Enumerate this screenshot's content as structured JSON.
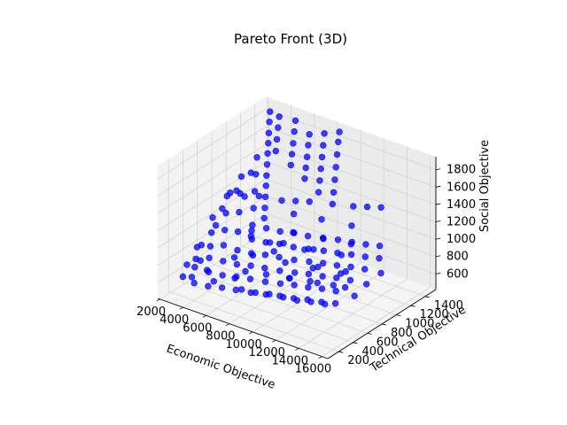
{
  "chart_data": {
    "type": "scatter",
    "projection": "3d",
    "title": "Pareto Front (3D)",
    "xlabel": "Economic Objective",
    "ylabel": "Technical Objective",
    "zlabel": "Social Objective",
    "xlim": [
      1800,
      16500
    ],
    "ylim": [
      50,
      1550
    ],
    "zlim": [
      420,
      1950
    ],
    "xticks": [
      2000,
      4000,
      6000,
      8000,
      10000,
      12000,
      14000,
      16000
    ],
    "yticks": [
      200,
      400,
      600,
      800,
      1000,
      1200,
      1400
    ],
    "zticks": [
      600,
      800,
      1000,
      1200,
      1400,
      1600,
      1800
    ],
    "grid": true,
    "marker_color": "#0000ff",
    "series": [
      {
        "points": [
          [
            2100,
            1480,
            600
          ],
          [
            2150,
            1480,
            720
          ],
          [
            2200,
            1480,
            850
          ],
          [
            2250,
            1480,
            980
          ],
          [
            2300,
            1480,
            1100
          ],
          [
            2350,
            1480,
            1230
          ],
          [
            2400,
            1480,
            1360
          ],
          [
            2450,
            1480,
            1480
          ],
          [
            2500,
            1480,
            1600
          ],
          [
            2550,
            1480,
            1730
          ],
          [
            2600,
            1480,
            1850
          ],
          [
            3100,
            1480,
            1420
          ],
          [
            3200,
            1480,
            1560
          ],
          [
            3300,
            1480,
            1700
          ],
          [
            3400,
            1480,
            1830
          ],
          [
            4400,
            1480,
            1320
          ],
          [
            4500,
            1480,
            1450
          ],
          [
            4600,
            1480,
            1580
          ],
          [
            4700,
            1480,
            1720
          ],
          [
            4800,
            1480,
            1850
          ],
          [
            5600,
            1480,
            1220
          ],
          [
            5700,
            1480,
            1350
          ],
          [
            5800,
            1480,
            1480
          ],
          [
            5900,
            1480,
            1620
          ],
          [
            6000,
            1480,
            1750
          ],
          [
            6800,
            1480,
            1120
          ],
          [
            6900,
            1480,
            1260
          ],
          [
            7000,
            1480,
            1400
          ],
          [
            7100,
            1480,
            1540
          ],
          [
            7200,
            1480,
            1680
          ],
          [
            7300,
            1480,
            1820
          ],
          [
            8000,
            1480,
            1040
          ],
          [
            8100,
            1480,
            1180
          ],
          [
            8200,
            1480,
            1330
          ],
          [
            8300,
            1480,
            1480
          ],
          [
            8400,
            1480,
            1630
          ],
          [
            8500,
            1480,
            1780
          ],
          [
            8600,
            1480,
            1900
          ],
          [
            2200,
            1300,
            620
          ],
          [
            2300,
            1300,
            820
          ],
          [
            2400,
            1300,
            1020
          ],
          [
            2500,
            1300,
            1220
          ],
          [
            2600,
            1300,
            1420
          ],
          [
            2200,
            1100,
            650
          ],
          [
            2300,
            1100,
            880
          ],
          [
            2400,
            1100,
            1100
          ],
          [
            2500,
            1100,
            1300
          ],
          [
            2200,
            900,
            600
          ],
          [
            2300,
            900,
            780
          ],
          [
            2400,
            900,
            980
          ],
          [
            2500,
            900,
            1180
          ],
          [
            2200,
            700,
            560
          ],
          [
            2300,
            700,
            700
          ],
          [
            2400,
            700,
            860
          ],
          [
            2500,
            700,
            1040
          ],
          [
            2200,
            500,
            560
          ],
          [
            2300,
            500,
            660
          ],
          [
            2400,
            500,
            800
          ],
          [
            2300,
            320,
            550
          ],
          [
            3400,
            1300,
            640
          ],
          [
            4600,
            1300,
            660
          ],
          [
            5800,
            1300,
            700
          ],
          [
            7000,
            1300,
            720
          ],
          [
            8300,
            1300,
            760
          ],
          [
            9600,
            1300,
            800
          ],
          [
            10800,
            1300,
            830
          ],
          [
            12000,
            1300,
            860
          ],
          [
            13200,
            1300,
            900
          ],
          [
            3400,
            1100,
            620
          ],
          [
            4600,
            1100,
            640
          ],
          [
            5800,
            1100,
            680
          ],
          [
            7000,
            1100,
            700
          ],
          [
            8300,
            1100,
            740
          ],
          [
            9600,
            1100,
            780
          ],
          [
            10800,
            1100,
            810
          ],
          [
            12000,
            1100,
            850
          ],
          [
            13200,
            1100,
            880
          ],
          [
            14400,
            1100,
            920
          ],
          [
            3400,
            900,
            600
          ],
          [
            4600,
            900,
            620
          ],
          [
            5800,
            900,
            660
          ],
          [
            7000,
            900,
            690
          ],
          [
            8300,
            900,
            720
          ],
          [
            9600,
            900,
            760
          ],
          [
            10800,
            900,
            800
          ],
          [
            12000,
            900,
            830
          ],
          [
            13200,
            900,
            870
          ],
          [
            14400,
            900,
            900
          ],
          [
            3400,
            700,
            580
          ],
          [
            4600,
            700,
            600
          ],
          [
            5800,
            700,
            640
          ],
          [
            7000,
            700,
            670
          ],
          [
            8300,
            700,
            700
          ],
          [
            9600,
            700,
            740
          ],
          [
            10800,
            700,
            780
          ],
          [
            12000,
            700,
            810
          ],
          [
            13200,
            700,
            850
          ],
          [
            14400,
            700,
            880
          ],
          [
            3400,
            500,
            560
          ],
          [
            4600,
            500,
            580
          ],
          [
            5800,
            500,
            620
          ],
          [
            7000,
            500,
            650
          ],
          [
            8300,
            500,
            680
          ],
          [
            9600,
            500,
            720
          ],
          [
            10800,
            500,
            760
          ],
          [
            12000,
            500,
            790
          ],
          [
            13200,
            500,
            830
          ],
          [
            14400,
            500,
            860
          ],
          [
            3400,
            300,
            540
          ],
          [
            4600,
            300,
            560
          ],
          [
            5800,
            300,
            600
          ],
          [
            7000,
            300,
            630
          ],
          [
            8300,
            300,
            660
          ],
          [
            9600,
            300,
            700
          ],
          [
            10800,
            300,
            740
          ],
          [
            12000,
            300,
            770
          ],
          [
            13200,
            300,
            810
          ],
          [
            14400,
            300,
            840
          ],
          [
            15600,
            300,
            880
          ],
          [
            6400,
            1200,
            1000
          ],
          [
            7600,
            1000,
            950
          ],
          [
            8800,
            1200,
            1050
          ],
          [
            10200,
            1000,
            1000
          ],
          [
            11400,
            1200,
            1100
          ],
          [
            12600,
            1000,
            1050
          ],
          [
            5200,
            800,
            900
          ],
          [
            6600,
            600,
            850
          ],
          [
            8000,
            800,
            950
          ],
          [
            9400,
            600,
            900
          ],
          [
            10600,
            800,
            1000
          ],
          [
            11800,
            600,
            950
          ],
          [
            13000,
            800,
            1050
          ],
          [
            14200,
            600,
            1000
          ],
          [
            7200,
            400,
            800
          ],
          [
            9000,
            400,
            850
          ],
          [
            11000,
            400,
            900
          ],
          [
            12800,
            400,
            950
          ],
          [
            14800,
            400,
            1000
          ],
          [
            4000,
            1000,
            800
          ],
          [
            5000,
            600,
            750
          ],
          [
            6200,
            900,
            820
          ],
          [
            7800,
            700,
            900
          ],
          [
            9200,
            900,
            880
          ],
          [
            10400,
            500,
            820
          ],
          [
            11600,
            700,
            900
          ],
          [
            12800,
            500,
            880
          ],
          [
            14000,
            700,
            960
          ],
          [
            15200,
            500,
            940
          ],
          [
            3000,
            450,
            700
          ],
          [
            3500,
            250,
            640
          ],
          [
            4200,
            350,
            700
          ],
          [
            5400,
            250,
            680
          ],
          [
            6600,
            350,
            720
          ],
          [
            7800,
            250,
            700
          ],
          [
            9000,
            250,
            720
          ],
          [
            10200,
            250,
            760
          ],
          [
            11400,
            250,
            780
          ],
          [
            12600,
            250,
            800
          ],
          [
            13800,
            250,
            840
          ],
          [
            15000,
            250,
            870
          ],
          [
            3800,
            1450,
            900
          ],
          [
            5000,
            1450,
            950
          ],
          [
            6200,
            1450,
            1000
          ],
          [
            9800,
            1480,
            1100
          ],
          [
            11000,
            1480,
            1150
          ],
          [
            12200,
            1480,
            1200
          ],
          [
            2150,
            1400,
            900
          ],
          [
            2150,
            1200,
            1000
          ],
          [
            2150,
            1000,
            1150
          ],
          [
            2150,
            800,
            880
          ],
          [
            2150,
            600,
            760
          ],
          [
            2150,
            400,
            640
          ],
          [
            2700,
            1200,
            1300
          ],
          [
            2700,
            1000,
            1200
          ],
          [
            2700,
            800,
            1100
          ],
          [
            15800,
            900,
            920
          ],
          [
            15800,
            700,
            900
          ],
          [
            16000,
            500,
            880
          ]
        ]
      }
    ]
  }
}
